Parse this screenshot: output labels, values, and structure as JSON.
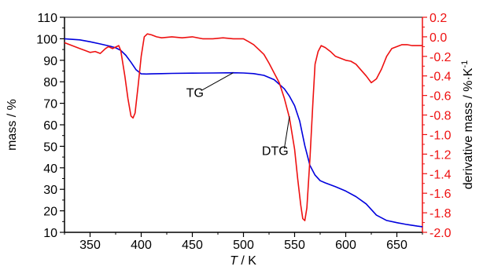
{
  "chart_data": {
    "type": "line",
    "xlabel_italic": "T",
    "xlabel_rest": " / K",
    "ylabel_left": "mass / %",
    "ylabel_right_main": "derivative mass / %·K",
    "ylabel_right_sup": "-1",
    "xlim": [
      325,
      675
    ],
    "ylim_left": [
      10,
      110
    ],
    "ylim_right": [
      -2.0,
      0.2
    ],
    "x_ticks": [
      350,
      400,
      450,
      500,
      550,
      600,
      650
    ],
    "left_ticks": [
      10,
      20,
      30,
      40,
      50,
      60,
      70,
      80,
      90,
      100,
      110
    ],
    "right_ticks": [
      0.2,
      0.0,
      -0.2,
      -0.4,
      -0.6,
      -0.8,
      -1.0,
      -1.2,
      -1.4,
      -1.6,
      -1.8,
      -2.0
    ],
    "x_tick_labels": [
      "350",
      "400",
      "450",
      "500",
      "550",
      "600",
      "650"
    ],
    "left_tick_labels": [
      "10",
      "20",
      "30",
      "40",
      "50",
      "60",
      "70",
      "80",
      "90",
      "100",
      "110"
    ],
    "right_tick_labels": [
      "0.2",
      "0.0",
      "-0.2",
      "-0.4",
      "-0.6",
      "-0.8",
      "-1.0",
      "-1.2",
      "-1.4",
      "-1.6",
      "-1.8",
      "-2.0"
    ],
    "colors": {
      "tg": "#0000dd",
      "dtg": "#ee1111",
      "right_axis": "#ee1111",
      "left_axis": "#000000"
    },
    "series": [
      {
        "name": "TG",
        "axis": "left",
        "x": [
          325,
          340,
          350,
          360,
          370,
          375,
          380,
          385,
          390,
          395,
          400,
          405,
          410,
          420,
          430,
          450,
          470,
          490,
          500,
          510,
          520,
          530,
          540,
          545,
          550,
          555,
          560,
          565,
          570,
          575,
          580,
          590,
          600,
          610,
          620,
          630,
          640,
          650,
          660,
          670,
          675
        ],
        "y": [
          100,
          99.5,
          98.6,
          97.6,
          96.5,
          95.8,
          94.6,
          92.3,
          89.1,
          85.6,
          83.7,
          83.6,
          83.7,
          83.8,
          83.9,
          84.0,
          84.1,
          84.2,
          84.1,
          83.8,
          83.0,
          81.0,
          76.7,
          73.3,
          68.9,
          61.7,
          50.3,
          41.1,
          36.6,
          34.0,
          33.0,
          31.2,
          29.2,
          26.6,
          23.2,
          18.0,
          15.5,
          14.5,
          13.6,
          12.9,
          12.6
        ]
      },
      {
        "name": "DTG",
        "axis": "right",
        "x": [
          325,
          330,
          335,
          340,
          345,
          350,
          355,
          360,
          365,
          368,
          372,
          376,
          378,
          380,
          384,
          387,
          390,
          392,
          394,
          397,
          400,
          403,
          406,
          410,
          415,
          420,
          430,
          440,
          450,
          460,
          470,
          480,
          490,
          500,
          505,
          510,
          515,
          520,
          525,
          530,
          535,
          540,
          545,
          550,
          553,
          556,
          558,
          560,
          562,
          565,
          568,
          570,
          573,
          576,
          580,
          585,
          590,
          595,
          600,
          605,
          610,
          615,
          620,
          625,
          630,
          635,
          640,
          645,
          650,
          655,
          660,
          665,
          670,
          675
        ],
        "y": [
          -0.06,
          -0.08,
          -0.1,
          -0.12,
          -0.14,
          -0.16,
          -0.15,
          -0.17,
          -0.12,
          -0.1,
          -0.12,
          -0.1,
          -0.09,
          -0.14,
          -0.4,
          -0.63,
          -0.81,
          -0.83,
          -0.78,
          -0.5,
          -0.2,
          0.0,
          0.03,
          0.02,
          0.0,
          -0.01,
          0.0,
          -0.01,
          0.0,
          -0.02,
          -0.02,
          -0.01,
          -0.02,
          -0.02,
          -0.05,
          -0.08,
          -0.13,
          -0.18,
          -0.27,
          -0.37,
          -0.47,
          -0.63,
          -0.83,
          -1.15,
          -1.45,
          -1.72,
          -1.86,
          -1.88,
          -1.75,
          -1.25,
          -0.65,
          -0.28,
          -0.15,
          -0.09,
          -0.11,
          -0.15,
          -0.2,
          -0.22,
          -0.24,
          -0.25,
          -0.28,
          -0.34,
          -0.4,
          -0.47,
          -0.43,
          -0.33,
          -0.2,
          -0.12,
          -0.1,
          -0.08,
          -0.08,
          -0.09,
          -0.09,
          -0.09
        ]
      }
    ],
    "annotations": [
      {
        "text": "TG",
        "series": "TG",
        "label_x": 444,
        "label_y": 73,
        "arrow_to_x": 490,
        "arrow_to_y": 84.2
      },
      {
        "text": "DTG",
        "series": "DTG",
        "label_x": 518,
        "label_y": 46,
        "arrow_to_x": 545,
        "arrow_to_y": 64
      }
    ],
    "grid": false
  }
}
